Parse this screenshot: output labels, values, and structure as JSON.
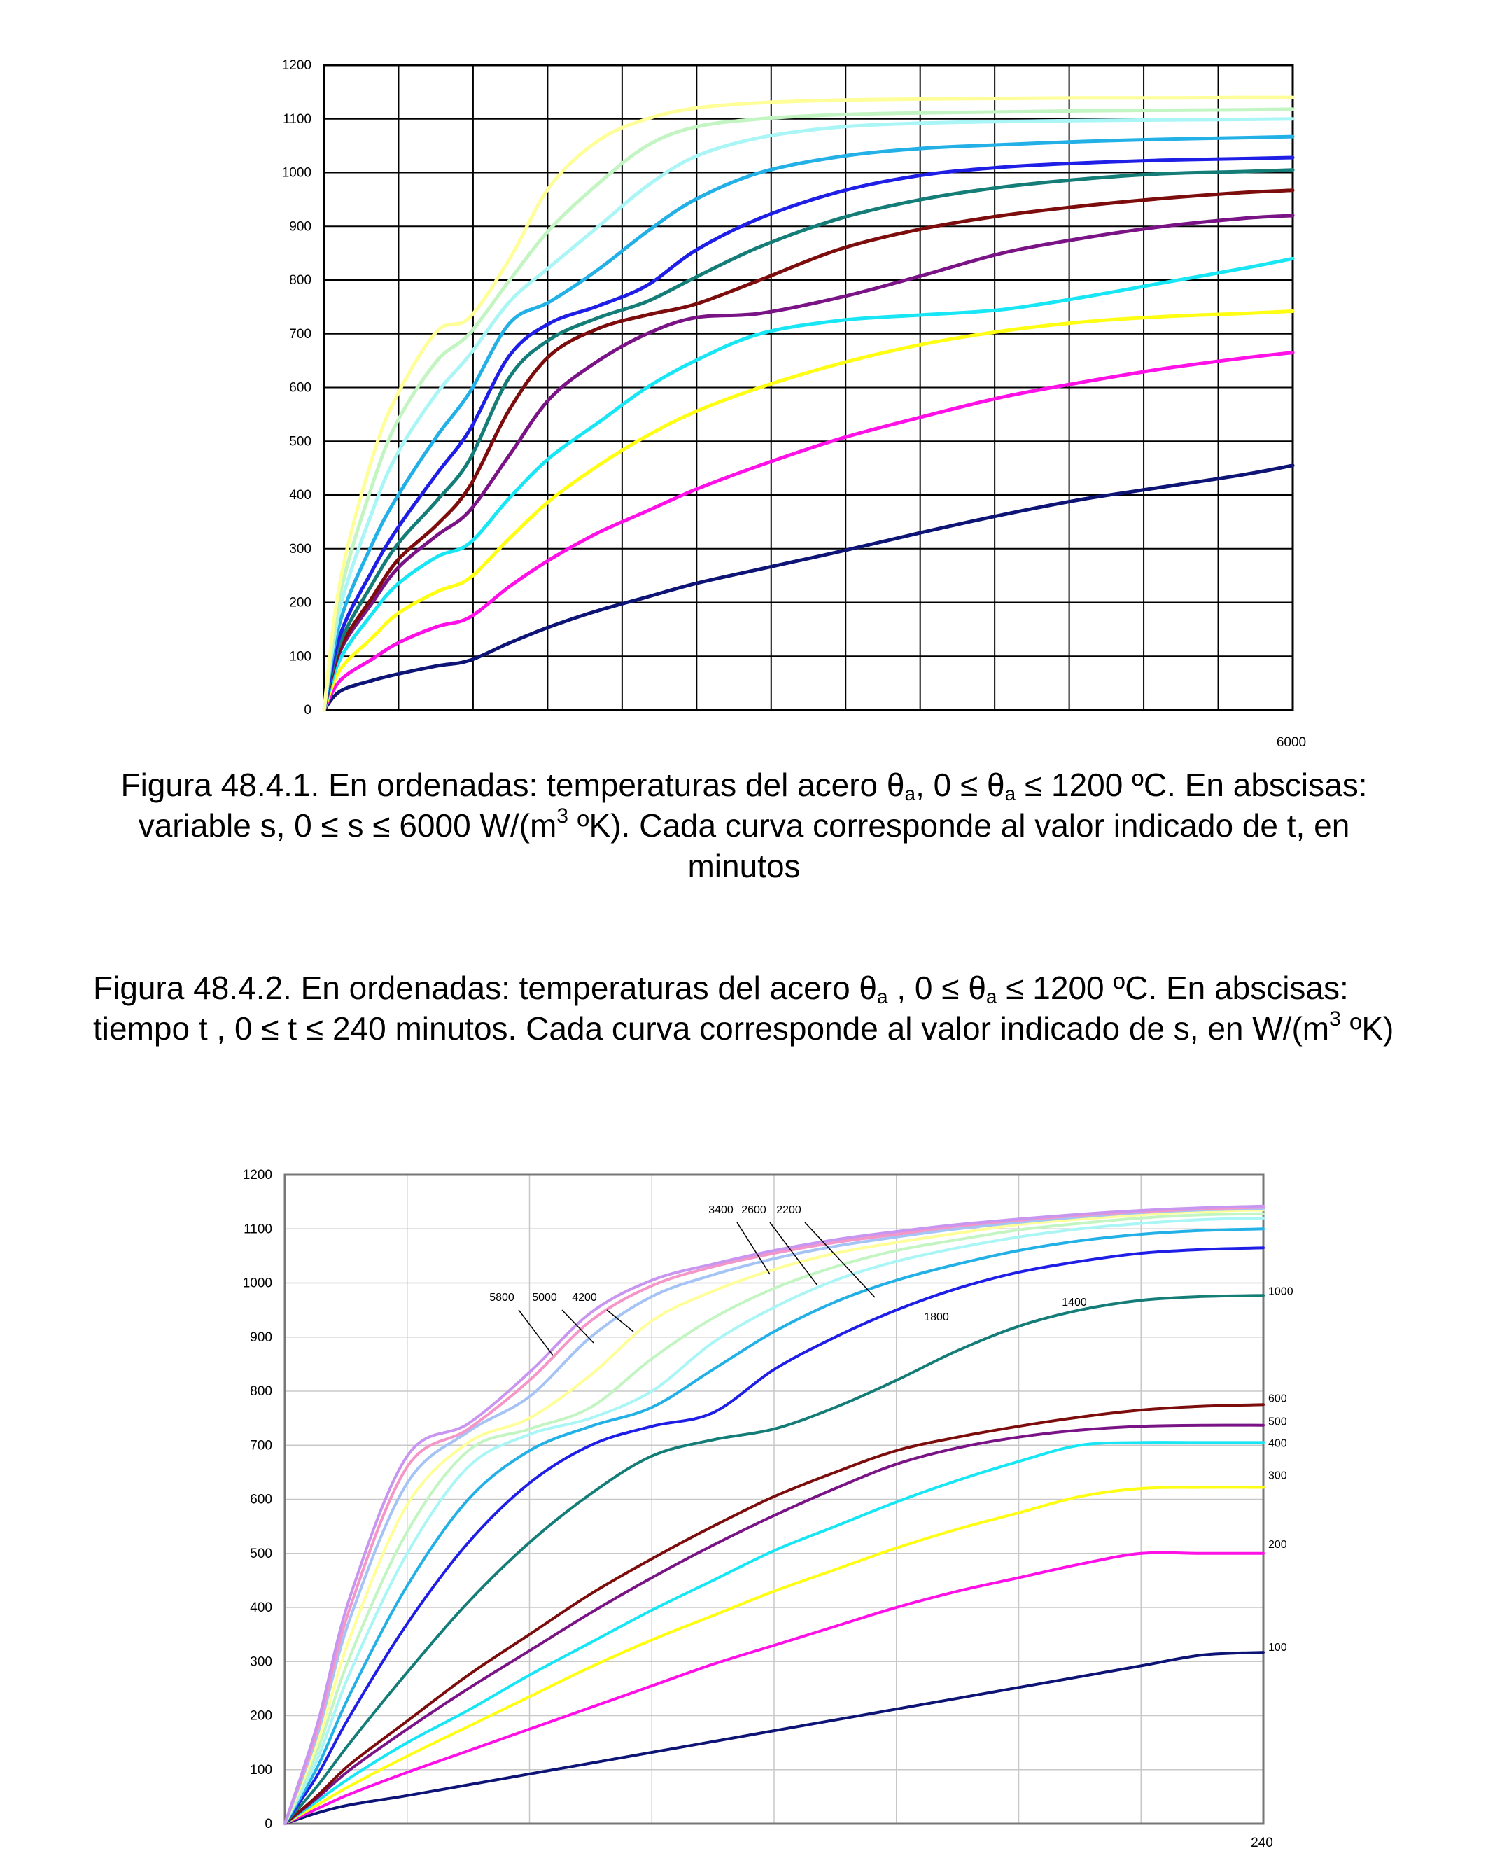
{
  "caption1": {
    "p1": "Figura 48.4.1. En ordenadas: temperaturas del acero θ",
    "s1": "a",
    "p2": ", 0 ≤ θ",
    "s2": "a",
    "p3": " ≤ 1200 ºC. En abscisas: variable s, 0 ≤ s ≤ 6000 W/(m",
    "sup": "3",
    "p4": " ºK). Cada curva corresponde al valor indicado de t, en minutos"
  },
  "caption2": {
    "p1": "Figura 48.4.2. En ordenadas: temperaturas del acero θ",
    "s1": "a",
    "p2": " , 0 ≤ θ",
    "s2": "a",
    "p3": " ≤ 1200 ºC. En abscisas: tiempo t , 0 ≤ t ≤ 240 minutos.  Cada curva corresponde al valor indicado de s, en W/(m",
    "sup": "3",
    "p4": " ºK)"
  },
  "chart_data": [
    {
      "type": "line",
      "xlim": [
        0,
        6000
      ],
      "ylim": [
        0,
        1200
      ],
      "x_tick_labels": [
        "6000"
      ],
      "y_ticks": [
        0,
        100,
        200,
        300,
        400,
        500,
        600,
        700,
        800,
        900,
        1000,
        1100,
        1200
      ],
      "grid": true,
      "x": [
        0,
        100,
        300,
        460,
        700,
        900,
        1150,
        1400,
        1700,
        2000,
        2300,
        2700,
        3200,
        3700,
        4200,
        4700,
        5200,
        5700,
        6000
      ],
      "series": [
        {
          "color": "#0d1475",
          "values": [
            0,
            35,
            55,
            67,
            82,
            92,
            125,
            155,
            185,
            210,
            235,
            262,
            295,
            330,
            363,
            392,
            415,
            438,
            455
          ]
        },
        {
          "color": "#ff10e6",
          "values": [
            0,
            55,
            95,
            125,
            155,
            172,
            230,
            280,
            330,
            370,
            410,
            455,
            505,
            545,
            582,
            610,
            635,
            655,
            665
          ]
        },
        {
          "color": "#ffff14",
          "values": [
            0,
            75,
            135,
            180,
            220,
            245,
            320,
            390,
            455,
            510,
            555,
            600,
            645,
            680,
            705,
            722,
            732,
            738,
            742
          ]
        },
        {
          "color": "#18e6f5",
          "values": [
            0,
            95,
            180,
            235,
            285,
            310,
            395,
            470,
            535,
            600,
            650,
            700,
            725,
            735,
            745,
            768,
            795,
            822,
            840
          ]
        },
        {
          "color": "#7a1486",
          "values": [
            0,
            110,
            200,
            265,
            325,
            370,
            475,
            580,
            650,
            700,
            730,
            738,
            768,
            808,
            850,
            878,
            900,
            915,
            920
          ]
        },
        {
          "color": "#7d0c0c",
          "values": [
            0,
            115,
            210,
            280,
            345,
            415,
            560,
            660,
            710,
            735,
            755,
            800,
            858,
            895,
            920,
            938,
            952,
            963,
            967
          ]
        },
        {
          "color": "#147d78",
          "values": [
            0,
            125,
            235,
            310,
            390,
            465,
            620,
            690,
            730,
            760,
            805,
            862,
            915,
            950,
            973,
            988,
            998,
            1002,
            1005
          ]
        },
        {
          "color": "#1e1ee6",
          "values": [
            0,
            140,
            260,
            340,
            440,
            520,
            660,
            720,
            752,
            790,
            855,
            915,
            965,
            995,
            1010,
            1018,
            1023,
            1026,
            1028
          ]
        },
        {
          "color": "#22b0e6",
          "values": [
            0,
            165,
            310,
            400,
            510,
            590,
            720,
            760,
            820,
            890,
            950,
            1000,
            1030,
            1045,
            1052,
            1058,
            1062,
            1065,
            1067
          ]
        },
        {
          "color": "#aaf5f5",
          "values": [
            0,
            190,
            370,
            480,
            590,
            660,
            760,
            825,
            900,
            975,
            1030,
            1065,
            1085,
            1092,
            1095,
            1097,
            1098,
            1099,
            1100
          ]
        },
        {
          "color": "#c3f5c3",
          "values": [
            0,
            215,
            420,
            540,
            650,
            700,
            800,
            895,
            980,
            1050,
            1085,
            1100,
            1108,
            1111,
            1113,
            1115,
            1116,
            1117,
            1118
          ]
        },
        {
          "color": "#ffff9a",
          "values": [
            0,
            240,
            470,
            590,
            705,
            730,
            840,
            975,
            1060,
            1100,
            1120,
            1130,
            1135,
            1137,
            1138,
            1139,
            1139,
            1140,
            1140
          ]
        }
      ]
    },
    {
      "type": "line",
      "xlim": [
        0,
        240
      ],
      "ylim": [
        0,
        1200
      ],
      "x_tick_labels": [
        "240"
      ],
      "y_ticks": [
        0,
        100,
        200,
        300,
        400,
        500,
        600,
        700,
        800,
        900,
        1000,
        1100,
        1200
      ],
      "grid": true,
      "x": [
        0,
        8,
        16,
        30,
        45,
        60,
        75,
        90,
        105,
        120,
        135,
        150,
        165,
        180,
        195,
        210,
        225,
        240
      ],
      "series": [
        {
          "name": "100",
          "color": "#0d1475",
          "values": [
            0,
            20,
            35,
            52,
            72,
            92,
            112,
            132,
            152,
            172,
            192,
            212,
            232,
            252,
            272,
            292,
            312,
            317
          ]
        },
        {
          "name": "200",
          "color": "#ff10e6",
          "values": [
            0,
            28,
            55,
            95,
            135,
            175,
            215,
            255,
            295,
            330,
            365,
            400,
            430,
            455,
            480,
            500,
            500,
            500
          ]
        },
        {
          "name": "300",
          "color": "#ffff14",
          "values": [
            0,
            35,
            70,
            125,
            180,
            235,
            290,
            340,
            385,
            430,
            470,
            510,
            545,
            575,
            605,
            620,
            622,
            622
          ]
        },
        {
          "name": "400",
          "color": "#18e6f5",
          "values": [
            0,
            42,
            85,
            150,
            210,
            275,
            335,
            395,
            450,
            505,
            550,
            595,
            635,
            670,
            700,
            705,
            705,
            705
          ]
        },
        {
          "name": "500",
          "color": "#7a1486",
          "values": [
            0,
            48,
            100,
            175,
            250,
            320,
            390,
            455,
            515,
            570,
            620,
            665,
            695,
            715,
            728,
            735,
            737,
            737
          ]
        },
        {
          "name": "600",
          "color": "#7d0c0c",
          "values": [
            0,
            52,
            110,
            190,
            275,
            350,
            425,
            490,
            550,
            605,
            650,
            690,
            715,
            735,
            752,
            765,
            772,
            775
          ]
        },
        {
          "name": "1000",
          "color": "#147d78",
          "values": [
            0,
            70,
            150,
            280,
            410,
            520,
            610,
            680,
            710,
            730,
            770,
            820,
            875,
            920,
            950,
            968,
            975,
            977
          ]
        },
        {
          "name": "1400",
          "color": "#1e1ee6",
          "values": [
            0,
            90,
            200,
            370,
            520,
            630,
            700,
            735,
            760,
            840,
            900,
            950,
            990,
            1020,
            1040,
            1055,
            1062,
            1065
          ]
        },
        {
          "name": "1800",
          "color": "#22b0e6",
          "values": [
            0,
            105,
            240,
            440,
            600,
            690,
            735,
            770,
            840,
            910,
            965,
            1005,
            1035,
            1060,
            1078,
            1090,
            1097,
            1100
          ]
        },
        {
          "name": "2200",
          "color": "#aaf5f5",
          "values": [
            0,
            120,
            280,
            500,
            660,
            720,
            750,
            800,
            890,
            955,
            1005,
            1040,
            1065,
            1085,
            1100,
            1110,
            1117,
            1120
          ]
        },
        {
          "name": "2600",
          "color": "#c3f5c3",
          "values": [
            0,
            135,
            310,
            540,
            690,
            730,
            770,
            860,
            935,
            990,
            1030,
            1060,
            1080,
            1098,
            1110,
            1120,
            1126,
            1128
          ]
        },
        {
          "name": "3400",
          "color": "#ffff9a",
          "values": [
            0,
            150,
            345,
            590,
            705,
            750,
            830,
            930,
            985,
            1025,
            1055,
            1075,
            1092,
            1108,
            1118,
            1126,
            1132,
            1135
          ]
        },
        {
          "name": "4200",
          "color": "#a5c3f5",
          "values": [
            0,
            165,
            380,
            630,
            725,
            790,
            900,
            975,
            1015,
            1045,
            1068,
            1085,
            1100,
            1112,
            1122,
            1130,
            1135,
            1137
          ]
        },
        {
          "name": "5000",
          "color": "#f596c8",
          "values": [
            0,
            175,
            400,
            660,
            730,
            820,
            930,
            995,
            1030,
            1055,
            1075,
            1090,
            1105,
            1116,
            1125,
            1132,
            1137,
            1140
          ]
        },
        {
          "name": "5800",
          "color": "#c896f0",
          "values": [
            0,
            185,
            420,
            680,
            740,
            835,
            945,
            1005,
            1035,
            1060,
            1080,
            1095,
            1108,
            1118,
            1127,
            1134,
            1139,
            1142
          ]
        }
      ],
      "annotations": [
        "5800",
        "5000",
        "4200",
        "3400",
        "2600",
        "2200",
        "1800",
        "1400"
      ]
    }
  ]
}
